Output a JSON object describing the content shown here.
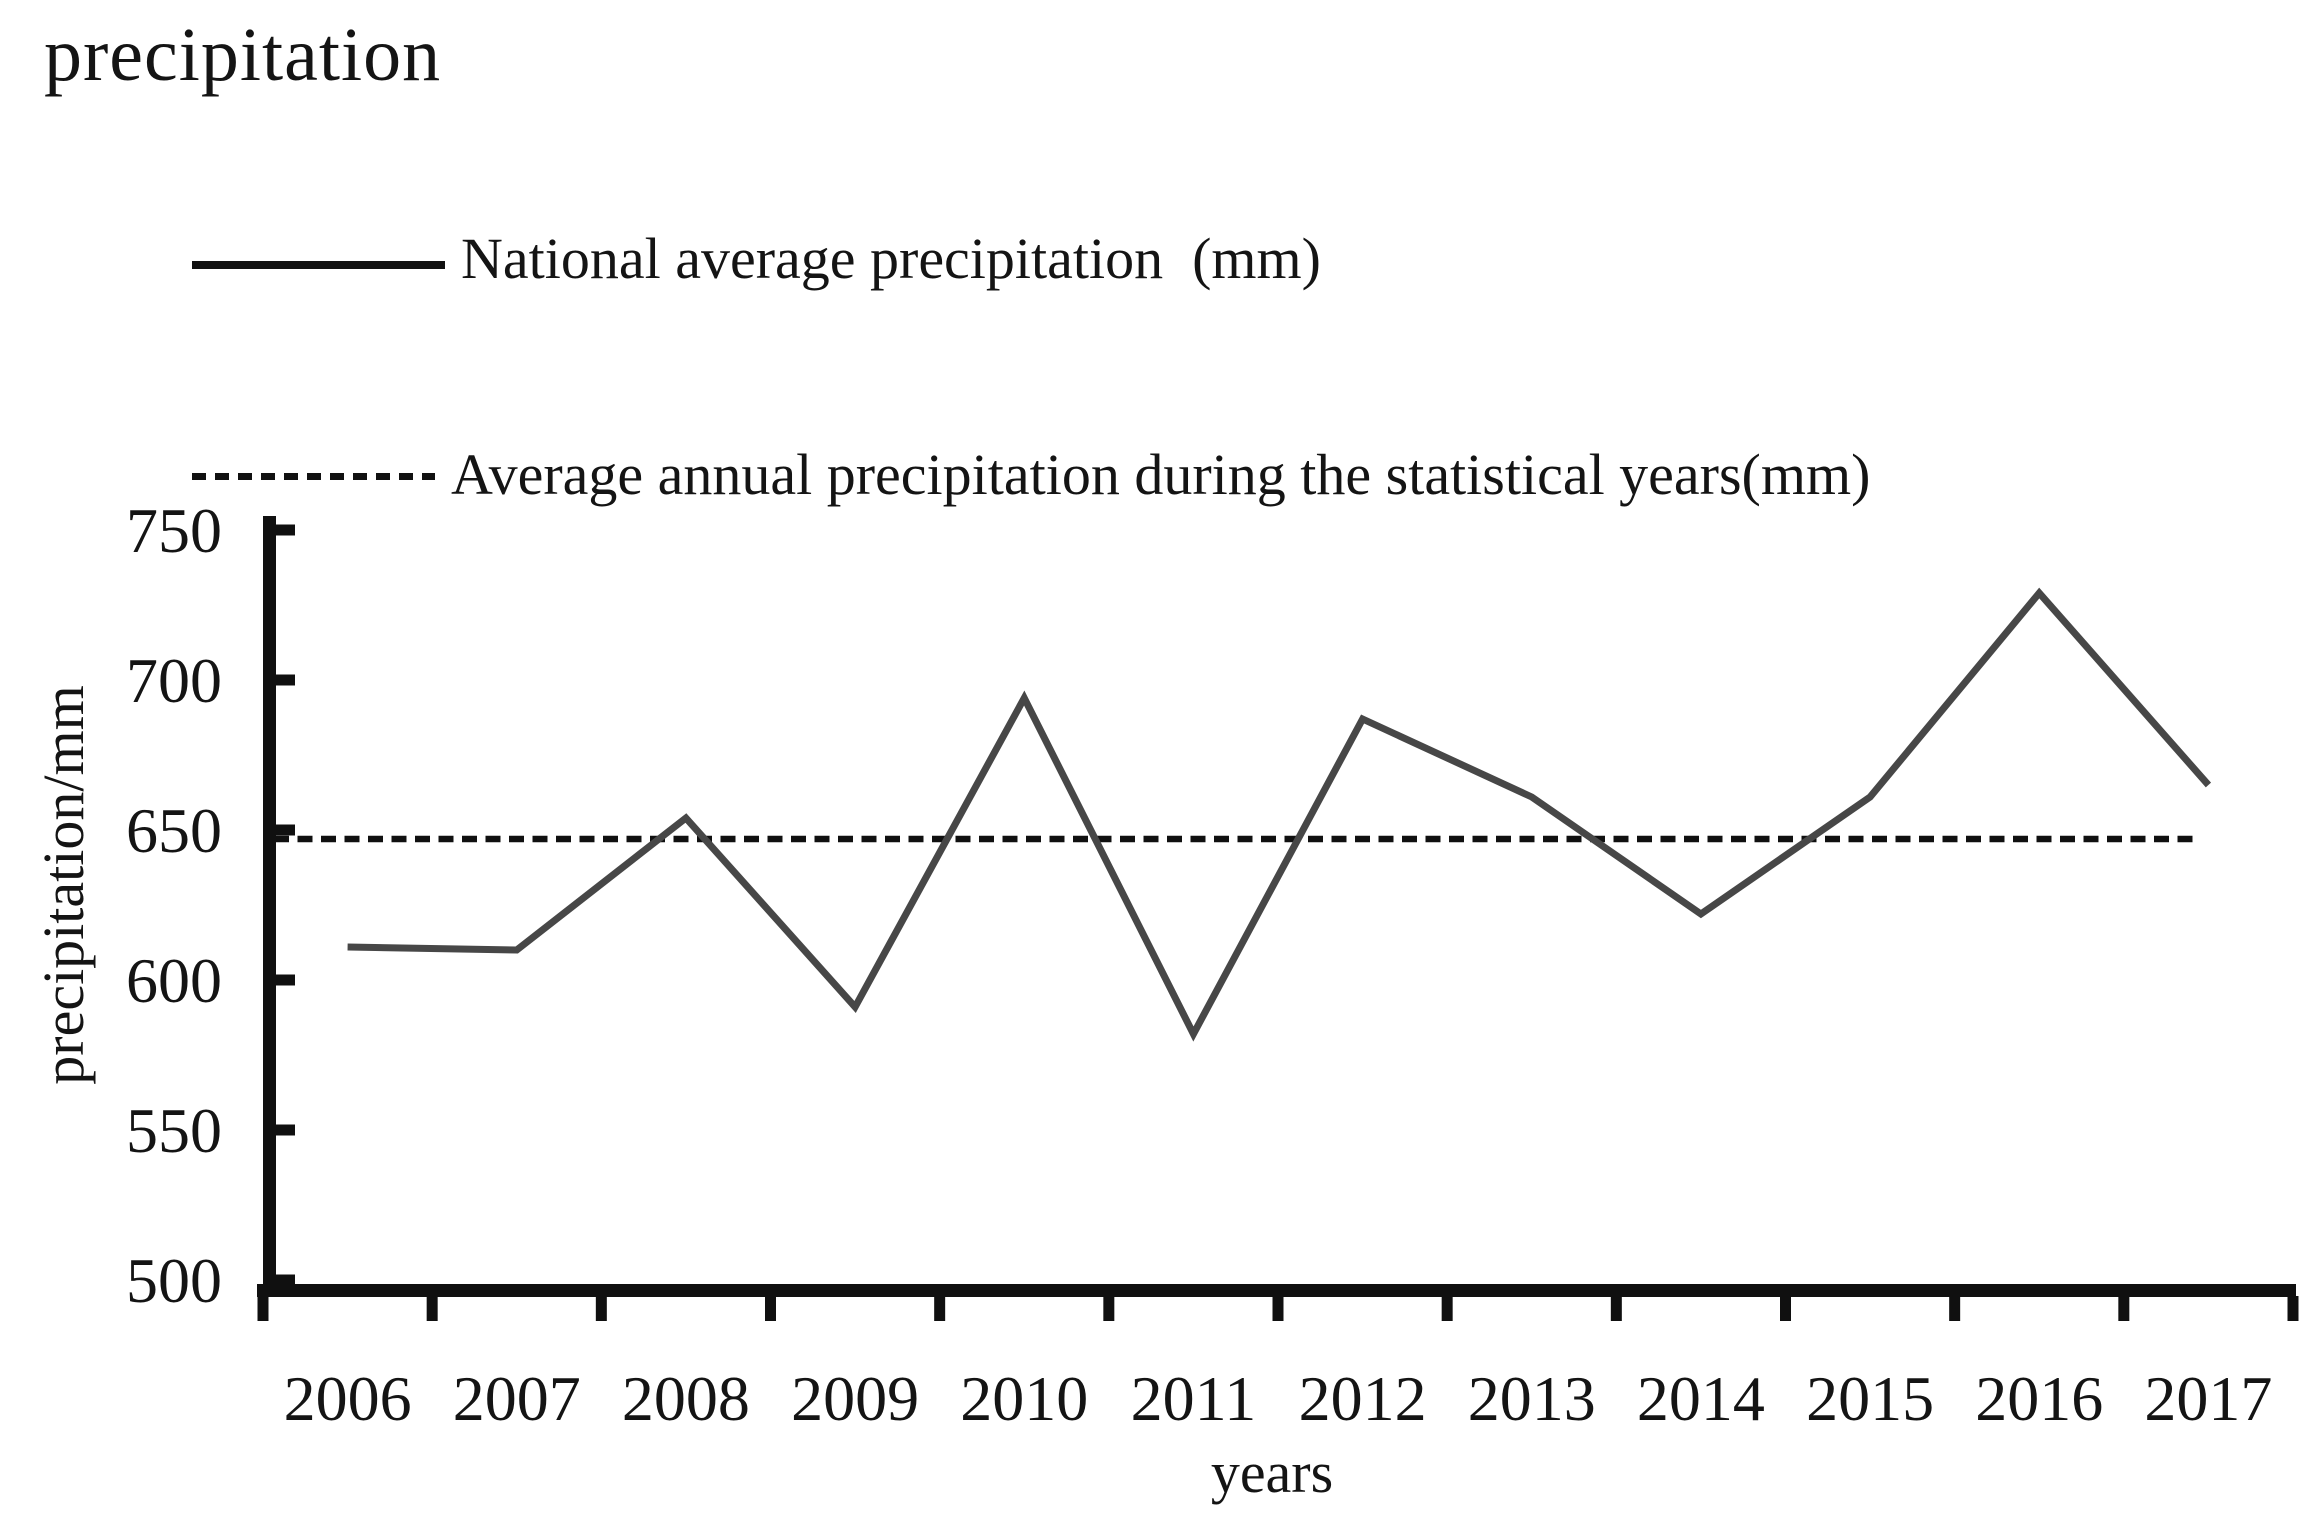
{
  "title": "precipitation",
  "legend": {
    "items": [
      {
        "label": "National average precipitation  (mm)",
        "line_style": "solid"
      },
      {
        "label": "Average annual precipitation during the statistical years(mm)",
        "line_style": "dashed"
      }
    ]
  },
  "colors": {
    "data_line": "#474747",
    "mean_line": "#101010",
    "axis": "#101010",
    "text": "#141414",
    "background": "#ffffff"
  },
  "chart_data": {
    "type": "line",
    "title": "precipitation",
    "x": [
      2006,
      2007,
      2008,
      2009,
      2010,
      2011,
      2012,
      2013,
      2014,
      2015,
      2016,
      2017
    ],
    "series": [
      {
        "name": "National average precipitation (mm)",
        "style": "solid",
        "values": [
          611,
          610,
          654,
          591,
          694,
          582,
          687,
          661,
          622,
          661,
          729,
          665
        ]
      },
      {
        "name": "Average annual precipitation during the statistical years(mm)",
        "style": "dashed-constant",
        "value": 647
      }
    ],
    "xlabel": "years",
    "ylabel": "precipitation/mm",
    "ylim": [
      500,
      750
    ],
    "yticks": [
      500,
      550,
      600,
      650,
      700,
      750
    ],
    "grid": false,
    "legend_position": "top-left"
  }
}
